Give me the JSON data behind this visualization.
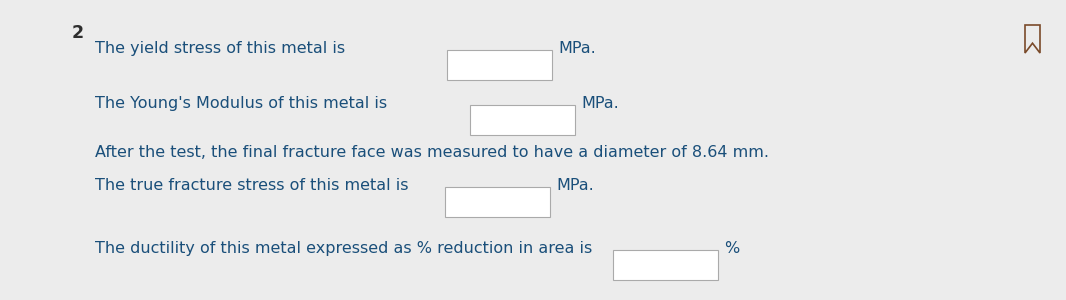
{
  "background_color": "#ececec",
  "text_color": "#1a4f7a",
  "number_color": "#2e2e2e",
  "line1_prefix": "The yield stress of this metal is",
  "line1_suffix": "MPa.",
  "line2_prefix": "The Young's Modulus of this metal is",
  "line2_suffix": "MPa.",
  "line3": "After the test, the final fracture face was measured to have a diameter of 8.64 mm.",
  "line4_prefix": "The true fracture stress of this metal is",
  "line4_suffix": "MPa.",
  "line5_prefix": "The ductility of this metal expressed as % reduction in area is",
  "line5_suffix": "%",
  "question_number": "2",
  "font_size": 11.5,
  "box_border_color": "#aaaaaa",
  "bookmark_color": "#7a4a2a"
}
